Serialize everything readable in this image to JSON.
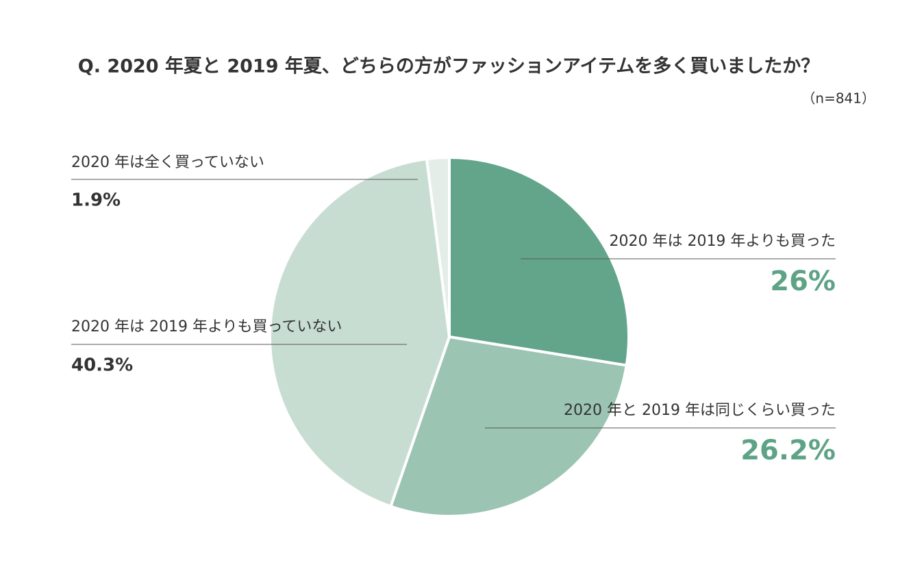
{
  "chart_data": {
    "type": "pie",
    "title": "Q. 2020 年夏と 2019 年夏、どちらの方がファッションアイテムを多く買いましたか？",
    "subtitle": "（n=841）",
    "categories": [
      "2020 年は 2019 年よりも買った",
      "2020 年と 2019 年は同じくらい買った",
      "2020 年は 2019 年よりも買っていない",
      "2020 年は全く買っていない"
    ],
    "values": [
      26,
      26.2,
      40.3,
      1.9
    ],
    "value_labels": [
      "26%",
      "26.2%",
      "40.3%",
      "1.9%"
    ],
    "colors": [
      "#63a58b",
      "#9cc4b2",
      "#c8ddd2",
      "#e4ede8"
    ],
    "value_label_colors": [
      "#5fa386",
      "#5fa386",
      "#333333",
      "#333333"
    ]
  }
}
